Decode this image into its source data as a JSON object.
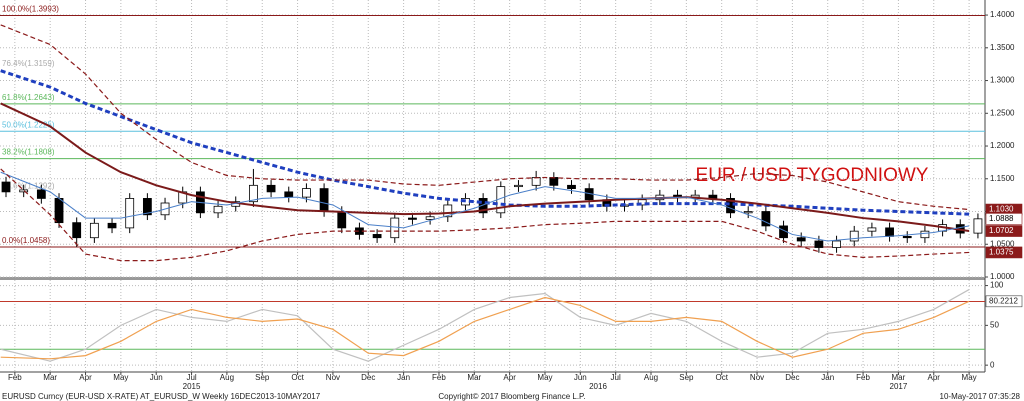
{
  "chart_data": {
    "type": "candlestick",
    "title": "EUR / USD TYGODNIOWY",
    "x": [
      -0.25,
      0.25,
      0.75,
      1.25,
      1.75,
      2.25,
      2.75,
      3.25,
      3.75,
      4.25,
      4.75,
      5.25,
      5.75,
      6.25,
      6.75,
      7.25,
      7.75,
      8.25,
      8.75,
      9.25,
      9.75,
      10.25,
      10.75,
      11.25,
      11.75,
      12.25,
      12.75,
      13.25,
      13.75,
      14.25,
      14.75,
      15.25,
      15.75,
      16.25,
      16.75,
      17.25,
      17.75,
      18.25,
      18.75,
      19.25,
      19.75,
      20.25,
      20.75,
      21.25,
      21.75,
      22.25,
      22.75,
      23.25,
      23.75,
      24.25,
      24.75,
      25.25,
      25.75,
      26.25,
      26.75,
      27.25
    ],
    "open": [
      1.145,
      1.13,
      1.133,
      1.12,
      1.083,
      1.06,
      1.082,
      1.075,
      1.12,
      1.095,
      1.113,
      1.13,
      1.098,
      1.108,
      1.115,
      1.14,
      1.13,
      1.122,
      1.135,
      1.1,
      1.075,
      1.065,
      1.06,
      1.09,
      1.088,
      1.092,
      1.11,
      1.12,
      1.098,
      1.138,
      1.14,
      1.152,
      1.14,
      1.135,
      1.118,
      1.108,
      1.11,
      1.118,
      1.125,
      1.122,
      1.125,
      1.12,
      1.098,
      1.1,
      1.078,
      1.06,
      1.055,
      1.045,
      1.055,
      1.07,
      1.075,
      1.062,
      1.06,
      1.07,
      1.08,
      1.067
    ],
    "high": [
      1.153,
      1.141,
      1.141,
      1.128,
      1.091,
      1.09,
      1.09,
      1.128,
      1.128,
      1.121,
      1.138,
      1.138,
      1.116,
      1.123,
      1.165,
      1.148,
      1.138,
      1.143,
      1.143,
      1.108,
      1.083,
      1.073,
      1.098,
      1.098,
      1.1,
      1.118,
      1.128,
      1.128,
      1.146,
      1.148,
      1.162,
      1.16,
      1.148,
      1.143,
      1.126,
      1.118,
      1.126,
      1.133,
      1.133,
      1.133,
      1.133,
      1.128,
      1.108,
      1.108,
      1.086,
      1.068,
      1.063,
      1.063,
      1.078,
      1.083,
      1.083,
      1.07,
      1.078,
      1.088,
      1.088,
      1.097
    ],
    "low": [
      1.122,
      1.122,
      1.112,
      1.075,
      1.046,
      1.052,
      1.067,
      1.067,
      1.087,
      1.087,
      1.105,
      1.09,
      1.09,
      1.1,
      1.107,
      1.122,
      1.114,
      1.114,
      1.092,
      1.067,
      1.057,
      1.052,
      1.052,
      1.08,
      1.08,
      1.084,
      1.102,
      1.09,
      1.09,
      1.13,
      1.132,
      1.132,
      1.127,
      1.11,
      1.1,
      1.1,
      1.102,
      1.11,
      1.114,
      1.114,
      1.112,
      1.09,
      1.09,
      1.07,
      1.052,
      1.047,
      1.037,
      1.037,
      1.047,
      1.062,
      1.054,
      1.052,
      1.052,
      1.062,
      1.059,
      1.059
    ],
    "close": [
      1.13,
      1.133,
      1.12,
      1.083,
      1.06,
      1.082,
      1.075,
      1.12,
      1.095,
      1.113,
      1.13,
      1.098,
      1.108,
      1.115,
      1.14,
      1.13,
      1.122,
      1.135,
      1.1,
      1.075,
      1.065,
      1.06,
      1.09,
      1.088,
      1.092,
      1.11,
      1.12,
      1.098,
      1.138,
      1.14,
      1.152,
      1.14,
      1.135,
      1.118,
      1.108,
      1.11,
      1.118,
      1.125,
      1.122,
      1.125,
      1.12,
      1.098,
      1.1,
      1.078,
      1.06,
      1.055,
      1.045,
      1.055,
      1.07,
      1.075,
      1.062,
      1.06,
      1.07,
      1.08,
      1.067,
      1.0888
    ],
    "up_color": "#ffffff",
    "down_color": "#000000",
    "xlim": [
      -0.42,
      27.45
    ],
    "xticks": [
      {
        "value": 0,
        "label": "Feb"
      },
      {
        "value": 1,
        "label": "Mar"
      },
      {
        "value": 2,
        "label": "Apr"
      },
      {
        "value": 3,
        "label": "May"
      },
      {
        "value": 4,
        "label": "Jun"
      },
      {
        "value": 5,
        "label": "Jul"
      },
      {
        "value": 6,
        "label": "Aug"
      },
      {
        "value": 7,
        "label": "Sep"
      },
      {
        "value": 8,
        "label": "Oct"
      },
      {
        "value": 9,
        "label": "Nov"
      },
      {
        "value": 10,
        "label": "Dec"
      },
      {
        "value": 11,
        "label": "Jan"
      },
      {
        "value": 12,
        "label": "Feb"
      },
      {
        "value": 13,
        "label": "Mar"
      },
      {
        "value": 14,
        "label": "Apr"
      },
      {
        "value": 15,
        "label": "May"
      },
      {
        "value": 16,
        "label": "Jun"
      },
      {
        "value": 17,
        "label": "Jul"
      },
      {
        "value": 18,
        "label": "Aug"
      },
      {
        "value": 19,
        "label": "Sep"
      },
      {
        "value": 20,
        "label": "Oct"
      },
      {
        "value": 21,
        "label": "Nov"
      },
      {
        "value": 22,
        "label": "Dec"
      },
      {
        "value": 23,
        "label": "Jan"
      },
      {
        "value": 24,
        "label": "Feb"
      },
      {
        "value": 25,
        "label": "Mar"
      },
      {
        "value": 26,
        "label": "Apr"
      },
      {
        "value": 27,
        "label": "May"
      }
    ],
    "year_labels": [
      {
        "value": 5,
        "label": "2015"
      },
      {
        "value": 16.5,
        "label": "2016"
      },
      {
        "value": 25,
        "label": "2017"
      }
    ],
    "ylim": [
      1.0,
      1.423
    ],
    "yticks": [
      {
        "value": 1.0,
        "label": "1.0000"
      },
      {
        "value": 1.05,
        "label": "1.0500"
      },
      {
        "value": 1.1,
        "label": "1.1000"
      },
      {
        "value": 1.15,
        "label": "1.1500"
      },
      {
        "value": 1.2,
        "label": "1.2000"
      },
      {
        "value": 1.25,
        "label": "1.2500"
      },
      {
        "value": 1.3,
        "label": "1.3000"
      },
      {
        "value": 1.35,
        "label": "1.3500"
      },
      {
        "value": 1.4,
        "label": "1.4000"
      }
    ],
    "grid": true,
    "levels": [
      {
        "value": 1.3993,
        "label": "100.0%(1.3993)",
        "color": "#8b1a1a",
        "line": true
      },
      {
        "value": 1.3159,
        "label": "76.4%(1.3159)",
        "color": "#aaaaaa",
        "line": false
      },
      {
        "value": 1.2643,
        "label": "61.8%(1.2643)",
        "color": "#5cb85c",
        "line": true
      },
      {
        "value": 1.2225,
        "label": "50.0%(1.2225)",
        "color": "#5bc0de",
        "line": true
      },
      {
        "value": 1.1808,
        "label": "38.2%(1.1808)",
        "color": "#5cb85c",
        "line": true
      },
      {
        "value": 1.1292,
        "label": "23.6%(1.1292)",
        "color": "#aaaaaa",
        "line": false
      },
      {
        "value": 1.0458,
        "label": "0.0%(1.0458)",
        "color": "#8b1a1a",
        "line": true
      }
    ],
    "price_labels": [
      {
        "value": 1.103,
        "label": "1.1030",
        "color": "#8b1a1a",
        "text_color": "#ffffff"
      },
      {
        "value": 1.0888,
        "label": "1.0888",
        "color": "#ffffff",
        "text_color": "#000000"
      },
      {
        "value": 1.0702,
        "label": "1.0702",
        "color": "#8b1a1a",
        "text_color": "#ffffff"
      },
      {
        "value": 1.0375,
        "label": "1.0375",
        "color": "#8b1a1a",
        "text_color": "#ffffff"
      }
    ],
    "overlays": {
      "x": [
        -0.4,
        1,
        2,
        3,
        4,
        5,
        6,
        7,
        8,
        9,
        10,
        11,
        12,
        13,
        14,
        15,
        16,
        17,
        18,
        19,
        20,
        21,
        22,
        23,
        24,
        25,
        26,
        27
      ],
      "series": [
        {
          "color": "#1f3fbf",
          "style": "dashed",
          "width": 3,
          "values": [
            1.315,
            1.29,
            1.265,
            1.245,
            1.225,
            1.205,
            1.19,
            1.175,
            1.16,
            1.148,
            1.138,
            1.128,
            1.12,
            1.115,
            1.11,
            1.108,
            1.108,
            1.11,
            1.112,
            1.112,
            1.112,
            1.11,
            1.108,
            1.105,
            1.102,
            1.1,
            1.098,
            1.096
          ]
        },
        {
          "color": "#7b1a1a",
          "style": "solid",
          "width": 2,
          "values": [
            1.265,
            1.23,
            1.19,
            1.16,
            1.14,
            1.125,
            1.115,
            1.108,
            1.102,
            1.1,
            1.098,
            1.096,
            1.097,
            1.1,
            1.108,
            1.112,
            1.115,
            1.118,
            1.12,
            1.122,
            1.118,
            1.112,
            1.105,
            1.098,
            1.09,
            1.085,
            1.078,
            1.0702
          ]
        },
        {
          "color": "#4a7fc8",
          "style": "solid",
          "width": 1,
          "values": [
            1.16,
            1.13,
            1.09,
            1.09,
            1.1,
            1.115,
            1.11,
            1.12,
            1.122,
            1.11,
            1.08,
            1.075,
            1.09,
            1.105,
            1.125,
            1.138,
            1.13,
            1.12,
            1.12,
            1.122,
            1.11,
            1.09,
            1.065,
            1.055,
            1.06,
            1.063,
            1.068,
            1.078
          ]
        },
        {
          "color": "#8b1a1a",
          "style": "dashed",
          "width": 1.2,
          "values": [
            1.385,
            1.355,
            1.31,
            1.25,
            1.21,
            1.175,
            1.155,
            1.15,
            1.148,
            1.148,
            1.148,
            1.142,
            1.14,
            1.145,
            1.15,
            1.152,
            1.15,
            1.15,
            1.148,
            1.148,
            1.152,
            1.158,
            1.155,
            1.145,
            1.13,
            1.115,
            1.108,
            1.103
          ]
        },
        {
          "color": "#8b1a1a",
          "style": "dashed",
          "width": 1.2,
          "values": [
            1.165,
            1.095,
            1.035,
            1.025,
            1.025,
            1.03,
            1.04,
            1.055,
            1.065,
            1.07,
            1.07,
            1.07,
            1.07,
            1.072,
            1.075,
            1.08,
            1.082,
            1.085,
            1.085,
            1.085,
            1.085,
            1.07,
            1.05,
            1.035,
            1.03,
            1.032,
            1.035,
            1.0375
          ]
        }
      ]
    },
    "oscillator": {
      "ylim": [
        -8.6,
        107
      ],
      "yticks": [
        0,
        50,
        100
      ],
      "levels": [
        {
          "value": 80,
          "color": "#c0392b"
        },
        {
          "value": 20,
          "color": "#5cb85c"
        }
      ],
      "x": [
        -0.4,
        1,
        2,
        3,
        4,
        5,
        6,
        7,
        8,
        9,
        10,
        11,
        12,
        13,
        14,
        15,
        16,
        17,
        18,
        19,
        20,
        21,
        22,
        23,
        24,
        25,
        26,
        27
      ],
      "series": [
        {
          "color": "#c0c0c0",
          "values": [
            20,
            5,
            20,
            50,
            70,
            60,
            55,
            70,
            62,
            20,
            5,
            25,
            45,
            70,
            85,
            90,
            60,
            50,
            65,
            55,
            30,
            10,
            15,
            40,
            45,
            55,
            70,
            95
          ]
        },
        {
          "color": "#f0a050",
          "values": [
            10,
            8,
            12,
            30,
            55,
            70,
            60,
            55,
            58,
            45,
            15,
            12,
            30,
            55,
            70,
            85,
            75,
            55,
            55,
            60,
            55,
            30,
            10,
            20,
            40,
            45,
            60,
            80.2212
          ]
        }
      ],
      "price_label": {
        "value": 80.2212,
        "label": "80.2212"
      }
    },
    "footer": {
      "left": "EURUSD Curncy (EUR-USD X-RATE) AT_EURUSD_W  Weekly 16DEC2013-10MAY2017",
      "center": "Copyright© 2017 Bloomberg Finance L.P.",
      "right": "10-May-2017 07:35:28"
    }
  }
}
